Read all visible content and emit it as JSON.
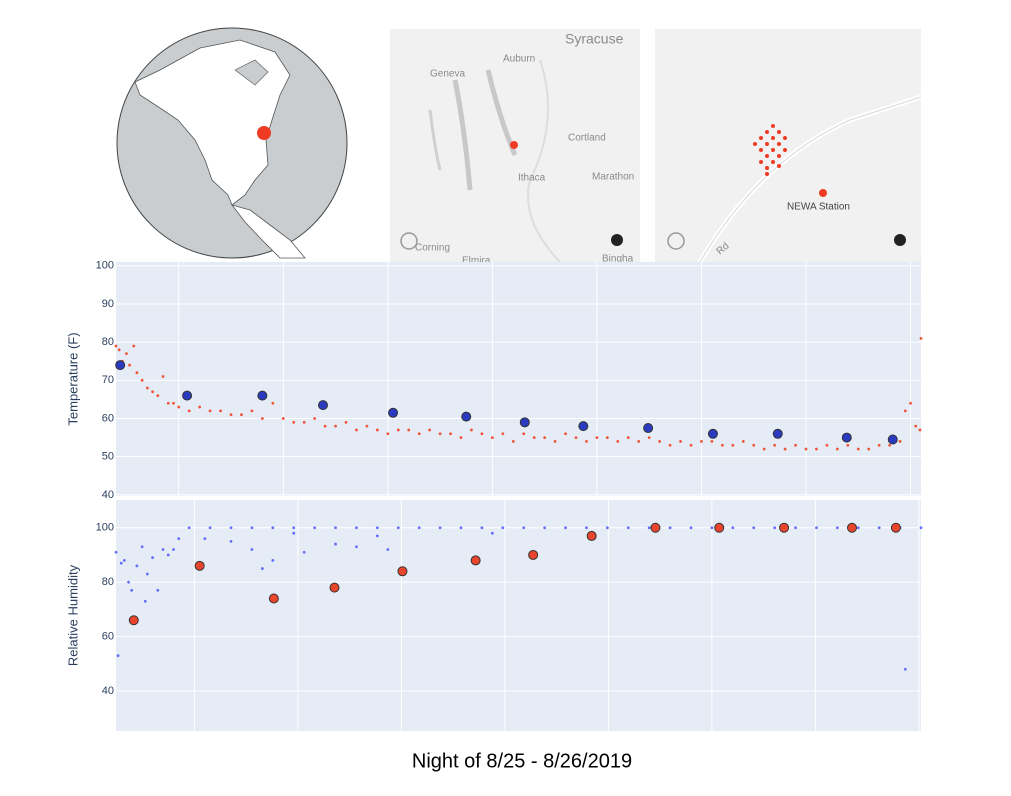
{
  "title": "Night of 8/25 - 8/26/2019",
  "maps": [
    {
      "labels": [
        "Syracuse",
        "Auburn",
        "Geneva",
        "Cortland",
        "Ithaca",
        "Marathon",
        "Corning",
        "Elmira",
        "Bingha"
      ]
    },
    {
      "labels": [
        "NEWA Station",
        "Rd"
      ]
    }
  ],
  "chart_data": [
    {
      "type": "scatter",
      "ylabel": "Temperature (F)",
      "xlim": [
        0,
        7.7
      ],
      "ylim": [
        39.7,
        101
      ],
      "xticks": [
        0.6,
        1.6,
        2.6,
        3.6,
        4.6,
        5.6,
        6.6,
        7.6
      ],
      "yticks": [
        40,
        50,
        60,
        70,
        80,
        90,
        100
      ],
      "grid": true,
      "series": [
        {
          "color": "#ef553b",
          "x": [
            0.0,
            0.03,
            0.06,
            0.1,
            0.13,
            0.17,
            0.2,
            0.25,
            0.3,
            0.35,
            0.4,
            0.45,
            0.5,
            0.55,
            0.6,
            0.7,
            0.8,
            0.9,
            1.0,
            1.1,
            1.2,
            1.3,
            1.4,
            1.5,
            1.6,
            1.7,
            1.8,
            1.9,
            2.0,
            2.1,
            2.2,
            2.3,
            2.4,
            2.5,
            2.6,
            2.7,
            2.8,
            2.9,
            3.0,
            3.1,
            3.2,
            3.3,
            3.4,
            3.5,
            3.6,
            3.7,
            3.8,
            3.9,
            4.0,
            4.1,
            4.2,
            4.3,
            4.4,
            4.5,
            4.6,
            4.7,
            4.8,
            4.9,
            5.0,
            5.1,
            5.2,
            5.3,
            5.4,
            5.5,
            5.6,
            5.7,
            5.8,
            5.9,
            6.0,
            6.1,
            6.2,
            6.3,
            6.4,
            6.5,
            6.6,
            6.7,
            6.8,
            6.9,
            7.0,
            7.1,
            7.2,
            7.3,
            7.4,
            7.5,
            7.55,
            7.6,
            7.65,
            7.69,
            7.7
          ],
          "values": [
            79,
            78,
            75,
            77,
            74,
            79,
            72,
            70,
            68,
            67,
            66,
            71,
            64,
            64,
            63,
            62,
            63,
            62,
            62,
            61,
            61,
            62,
            60,
            64,
            60,
            59,
            59,
            60,
            58,
            58,
            59,
            57,
            58,
            57,
            56,
            57,
            57,
            56,
            57,
            56,
            56,
            55,
            57,
            56,
            55,
            56,
            54,
            56,
            55,
            55,
            54,
            56,
            55,
            54,
            55,
            55,
            54,
            55,
            54,
            55,
            54,
            53,
            54,
            53,
            54,
            54,
            53,
            53,
            54,
            53,
            52,
            53,
            52,
            53,
            52,
            52,
            53,
            52,
            53,
            52,
            52,
            53,
            53,
            54,
            62,
            64,
            58,
            57,
            81
          ]
        },
        {
          "color": "#2a3bbf",
          "x": [
            0.04,
            0.68,
            1.4,
            1.98,
            2.65,
            3.35,
            3.91,
            4.47,
            5.09,
            5.71,
            6.33,
            6.99,
            7.43
          ],
          "values": [
            74,
            66,
            66,
            63.5,
            61.5,
            60.5,
            59,
            58,
            57.5,
            56,
            56,
            55,
            54.5
          ]
        }
      ]
    },
    {
      "type": "scatter",
      "ylabel": "Relative Humidity",
      "xlim": [
        0,
        7.7
      ],
      "ylim": [
        25.3,
        110.2
      ],
      "xticks": [
        0.75,
        1.74,
        2.73,
        3.72,
        4.71,
        5.7,
        6.69,
        7.68
      ],
      "yticks": [
        40,
        60,
        80,
        100
      ],
      "grid": true,
      "series": [
        {
          "color": "#636efa",
          "x": [
            0.0,
            0.02,
            0.05,
            0.08,
            0.12,
            0.15,
            0.2,
            0.25,
            0.28,
            0.3,
            0.35,
            0.4,
            0.45,
            0.5,
            0.55,
            0.6,
            0.85,
            1.1,
            1.3,
            1.4,
            1.5,
            1.7,
            1.8,
            2.1,
            2.3,
            2.5,
            2.6,
            3.6,
            7.55,
            0.7,
            0.9,
            1.1,
            1.3,
            1.5,
            1.7,
            1.9,
            2.1,
            2.3,
            2.5,
            2.7,
            2.9,
            3.1,
            3.3,
            3.5,
            3.7,
            3.9,
            4.1,
            4.3,
            4.5,
            4.7,
            4.9,
            5.1,
            5.3,
            5.5,
            5.7,
            5.9,
            6.1,
            6.3,
            6.5,
            6.7,
            6.9,
            7.1,
            7.3,
            7.5,
            7.7
          ],
          "values": [
            91,
            53,
            87,
            88,
            80,
            77,
            86,
            93,
            73,
            83,
            89,
            77,
            92,
            90,
            92,
            96,
            96,
            95,
            92,
            85,
            88,
            98,
            91,
            94,
            93,
            97,
            92,
            98,
            48,
            100,
            100,
            100,
            100,
            100,
            100,
            100,
            100,
            100,
            100,
            100,
            100,
            100,
            100,
            100,
            100,
            100,
            100,
            100,
            100,
            100,
            100,
            100,
            100,
            100,
            100,
            100,
            100,
            100,
            100,
            100,
            100,
            100,
            100,
            100,
            100
          ]
        },
        {
          "color": "#e8452c",
          "x": [
            0.17,
            0.8,
            1.51,
            2.09,
            2.74,
            3.44,
            3.99,
            4.55,
            5.16,
            5.77,
            6.39,
            7.04,
            7.46
          ],
          "values": [
            66,
            86,
            74,
            78,
            84,
            88,
            90,
            97,
            100,
            100,
            100,
            100,
            100
          ]
        }
      ]
    }
  ]
}
